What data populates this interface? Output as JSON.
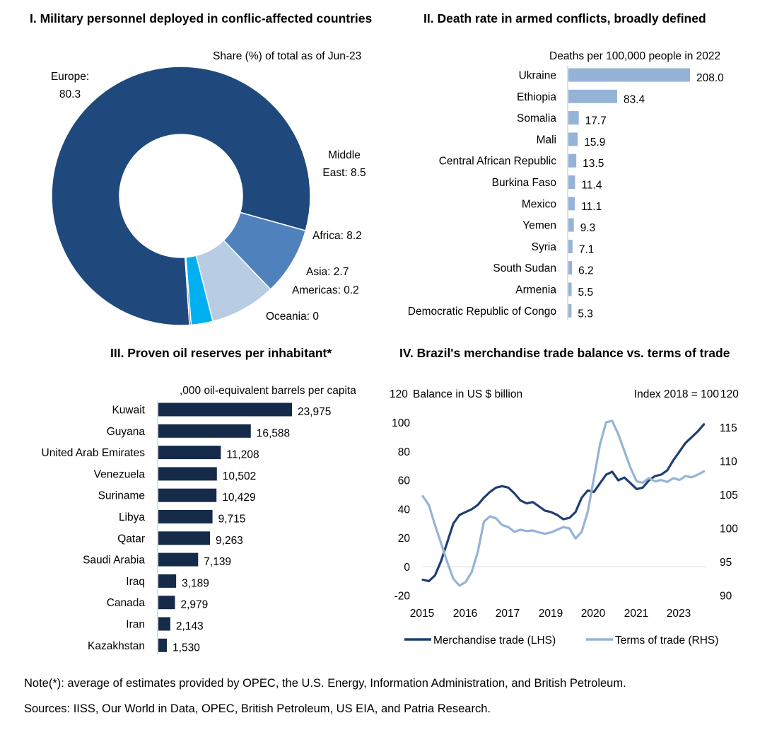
{
  "footer": {
    "note": "Note(*): average of estimates provided by OPEC, the U.S. Energy, Information Administration, and British Petroleum.",
    "sources": "Sources: IISS, Our World in Data, OPEC, British Petroleum, US EIA, and Patria Research."
  },
  "chart_data": [
    {
      "type": "pie",
      "title": "I. Military personnel deployed in conflic-affected countries",
      "subtitle": "Share (%) of total as of  Jun-23",
      "slices": [
        {
          "label": "Europe:",
          "label2": "80.3",
          "value": 80.3,
          "color": "#1f497d"
        },
        {
          "label": "Middle",
          "label2": "East: 8.5",
          "value": 8.5,
          "color": "#4f81bd"
        },
        {
          "label": "Africa: 8.2",
          "value": 8.2,
          "color": "#b8cce4"
        },
        {
          "label": "Asia: 2.7",
          "value": 2.7,
          "color": "#00b0f0"
        },
        {
          "label": "Americas: 0.2",
          "value": 0.2,
          "color": "#17375e"
        },
        {
          "label": "Oceania: 0",
          "value": 0.0,
          "color": "#1f497d"
        }
      ]
    },
    {
      "type": "bar",
      "orientation": "horizontal",
      "title": "II. Death rate in armed conflicts, broadly defined",
      "subtitle": "Deaths per 100,000 people in 2022",
      "color": "#95b3d7",
      "categories": [
        "Ukraine",
        "Ethiopia",
        "Somalia",
        "Mali",
        "Central African Republic",
        "Burkina Faso",
        "Mexico",
        "Yemen",
        "Syria",
        "South Sudan",
        "Armenia",
        "Democratic Republic of Congo"
      ],
      "values": [
        208.0,
        83.4,
        17.7,
        15.9,
        13.5,
        11.4,
        11.1,
        9.3,
        7.1,
        6.2,
        5.5,
        5.3
      ],
      "labels": [
        "208.0",
        "83.4",
        "17.7",
        "15.9",
        "13.5",
        "11.4",
        "11.1",
        "9.3",
        "7.1",
        "6.2",
        "5.5",
        "5.3"
      ],
      "xlim": [
        0,
        208
      ]
    },
    {
      "type": "bar",
      "orientation": "horizontal",
      "title": "III. Proven oil reserves per inhabitant*",
      "subtitle": ",000 oil-equivalent barrels per capita",
      "color": "#162a4a",
      "categories": [
        "Kuwait",
        "Guyana",
        "United Arab Emirates",
        "Venezuela",
        "Suriname",
        "Libya",
        "Qatar",
        "Saudi Arabia",
        "Iraq",
        "Canada",
        "Iran",
        "Kazakhstan"
      ],
      "values": [
        23975,
        16588,
        11208,
        10502,
        10429,
        9715,
        9263,
        7139,
        3189,
        2979,
        2143,
        1530
      ],
      "labels": [
        "23,975",
        "16,588",
        "11,208",
        "10,502",
        "10,429",
        "9,715",
        "9,263",
        "7,139",
        "3,189",
        "2,979",
        "2,143",
        "1,530"
      ],
      "xlim": [
        0,
        23975
      ]
    },
    {
      "type": "line",
      "title": "IV. Brazil's merchandise trade balance vs. terms of trade",
      "ylabel_left": "Balance in US $ billion",
      "ylabel_right": "Index 2018 = 100",
      "ylim_left": [
        -20,
        120
      ],
      "ylim_right": [
        90,
        120
      ],
      "yticks_left": [
        "120",
        "100",
        "80",
        "60",
        "40",
        "20",
        "0",
        "-20"
      ],
      "yticks_right": [
        "120",
        "115",
        "110",
        "105",
        "100",
        "95",
        "90"
      ],
      "xlim": [
        2015,
        2024.3
      ],
      "xticks": [
        "2015",
        "2016",
        "2017",
        "2019",
        "2020",
        "2021",
        "2023"
      ],
      "series": [
        {
          "name": "Merchandise trade (LHS)",
          "axis": "left",
          "color": "#1f3f73",
          "x": [
            2015.0,
            2015.2,
            2015.4,
            2015.6,
            2015.8,
            2016.0,
            2016.2,
            2016.4,
            2016.6,
            2016.8,
            2017.0,
            2017.2,
            2017.4,
            2017.6,
            2017.8,
            2018.0,
            2018.2,
            2018.4,
            2018.6,
            2018.8,
            2019.0,
            2019.2,
            2019.4,
            2019.6,
            2019.8,
            2020.0,
            2020.2,
            2020.4,
            2020.6,
            2020.8,
            2021.0,
            2021.2,
            2021.4,
            2021.6,
            2021.8,
            2022.0,
            2022.2,
            2022.4,
            2022.6,
            2022.8,
            2023.0,
            2023.2,
            2023.4,
            2023.6,
            2023.8,
            2024.0,
            2024.2
          ],
          "y": [
            -9,
            -10,
            -6,
            4,
            17,
            30,
            36,
            38,
            40,
            43,
            48,
            52,
            55,
            56,
            55,
            51,
            46,
            44,
            45,
            42,
            39,
            38,
            36,
            33,
            34,
            38,
            48,
            53,
            52,
            58,
            64,
            66,
            60,
            62,
            58,
            54,
            55,
            60,
            63,
            64,
            67,
            74,
            80,
            86,
            90,
            94,
            99
          ]
        },
        {
          "name": "Terms of trade (RHS)",
          "axis": "right",
          "color": "#95b3d7",
          "x": [
            2015.0,
            2015.2,
            2015.4,
            2015.6,
            2015.8,
            2016.0,
            2016.2,
            2016.4,
            2016.6,
            2016.8,
            2017.0,
            2017.2,
            2017.4,
            2017.6,
            2017.8,
            2018.0,
            2018.2,
            2018.4,
            2018.6,
            2018.8,
            2019.0,
            2019.2,
            2019.4,
            2019.6,
            2019.8,
            2020.0,
            2020.2,
            2020.4,
            2020.6,
            2020.8,
            2021.0,
            2021.2,
            2021.4,
            2021.6,
            2021.8,
            2022.0,
            2022.2,
            2022.4,
            2022.6,
            2022.8,
            2023.0,
            2023.2,
            2023.4,
            2023.6,
            2023.8,
            2024.0,
            2024.2
          ],
          "y": [
            104.8,
            103.5,
            100.5,
            97.8,
            95.0,
            92.5,
            91.5,
            92.0,
            93.5,
            96.5,
            101.0,
            101.8,
            101.5,
            100.5,
            100.2,
            99.5,
            99.8,
            99.6,
            99.7,
            99.4,
            99.2,
            99.4,
            99.8,
            100.2,
            100.0,
            98.5,
            99.5,
            102.5,
            107.5,
            112.5,
            115.8,
            116.0,
            114.0,
            111.5,
            109.0,
            107.0,
            106.8,
            107.5,
            107.0,
            107.2,
            106.9,
            107.5,
            107.2,
            107.8,
            107.6,
            108.0,
            108.5
          ]
        }
      ]
    }
  ]
}
